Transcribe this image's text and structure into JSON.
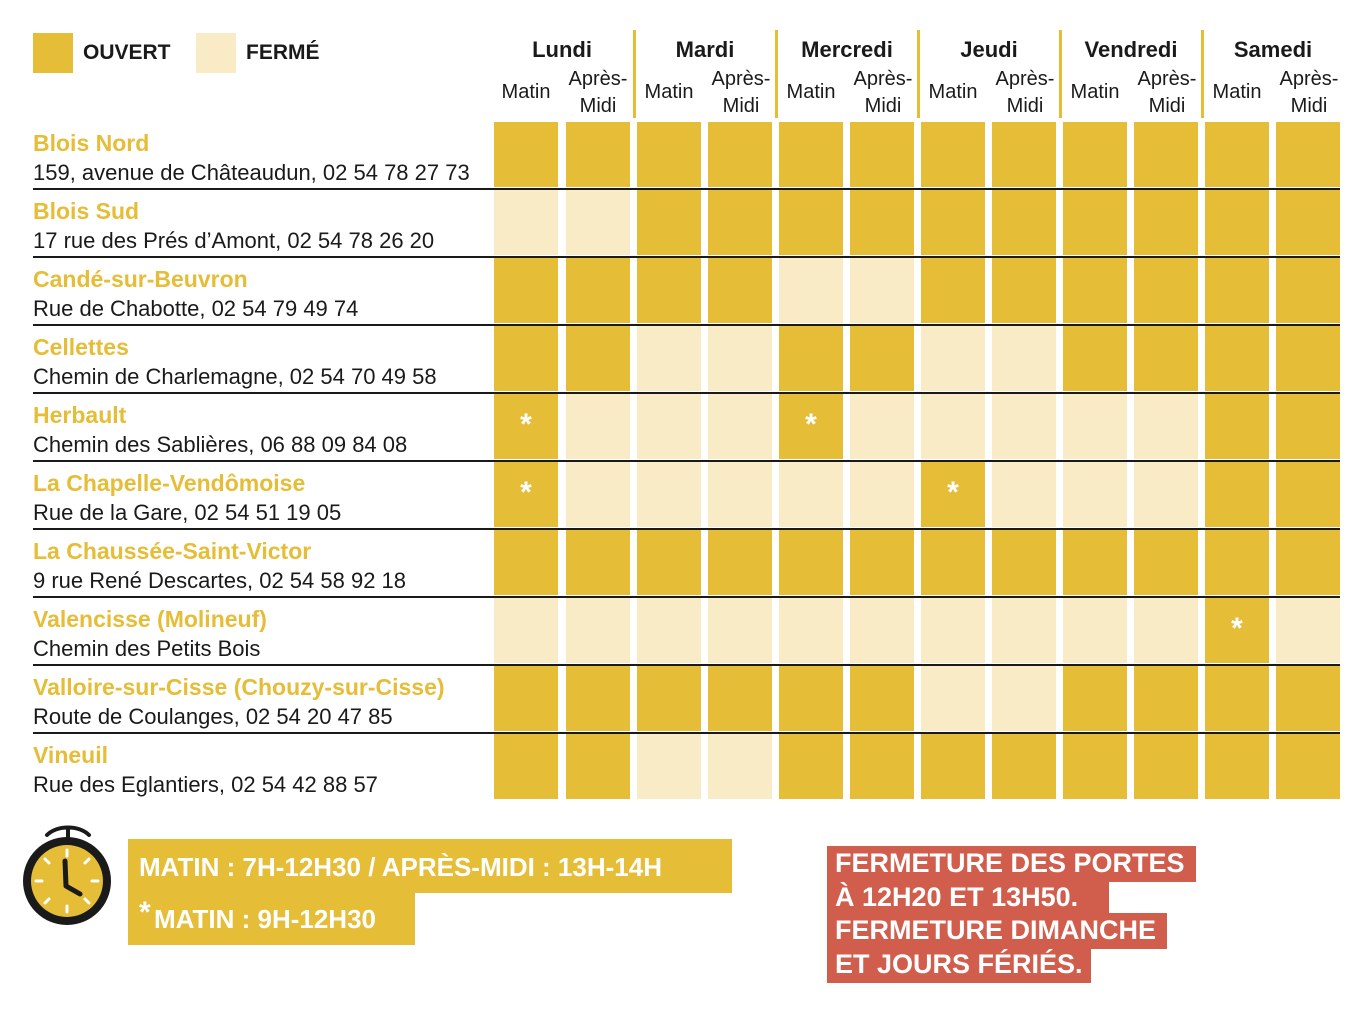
{
  "legend": {
    "open_label": "OUVERT",
    "closed_label": "FERMÉ"
  },
  "colors": {
    "open": "#e6bd37",
    "closed": "#f8ebc5",
    "title_text": "#e6bd37",
    "note_background": "#d15d4c"
  },
  "days": [
    "Lundi",
    "Mardi",
    "Mercredi",
    "Jeudi",
    "Vendredi",
    "Samedi"
  ],
  "slots": {
    "morning": "Matin",
    "afternoon_line1": "Après-",
    "afternoon_line2": "Midi"
  },
  "sites": [
    {
      "name": "Blois Nord",
      "address": "159, avenue de Châteaudun, 02 54 78 27 73",
      "schedule": [
        "open",
        "open",
        "open",
        "open",
        "open",
        "open",
        "open",
        "open",
        "open",
        "open",
        "open",
        "open"
      ]
    },
    {
      "name": "Blois Sud",
      "address": "17 rue des Prés d’Amont, 02 54 78 26 20",
      "schedule": [
        "closed",
        "closed",
        "open",
        "open",
        "open",
        "open",
        "open",
        "open",
        "open",
        "open",
        "open",
        "open"
      ]
    },
    {
      "name": "Candé-sur-Beuvron",
      "address": "Rue de Chabotte, 02 54 79 49 74",
      "schedule": [
        "open",
        "open",
        "open",
        "open",
        "closed",
        "closed",
        "open",
        "open",
        "open",
        "open",
        "open",
        "open"
      ]
    },
    {
      "name": "Cellettes",
      "address": "Chemin de Charlemagne, 02 54 70 49 58",
      "schedule": [
        "open",
        "open",
        "closed",
        "closed",
        "open",
        "open",
        "closed",
        "closed",
        "open",
        "open",
        "open",
        "open"
      ]
    },
    {
      "name": "Herbault",
      "address": "Chemin des Sablières, 06 88 09 84 08",
      "schedule": [
        "open*",
        "closed",
        "closed",
        "closed",
        "open*",
        "closed",
        "closed",
        "closed",
        "closed",
        "closed",
        "open",
        "open"
      ]
    },
    {
      "name": "La Chapelle-Vendômoise",
      "address": "Rue de la Gare, 02 54 51 19 05",
      "schedule": [
        "open*",
        "closed",
        "closed",
        "closed",
        "closed",
        "closed",
        "open*",
        "closed",
        "closed",
        "closed",
        "open",
        "open"
      ]
    },
    {
      "name": "La Chaussée-Saint-Victor",
      "address": "9 rue René Descartes, 02 54 58 92 18",
      "schedule": [
        "open",
        "open",
        "open",
        "open",
        "open",
        "open",
        "open",
        "open",
        "open",
        "open",
        "open",
        "open"
      ]
    },
    {
      "name": "Valencisse (Molineuf)",
      "address": "Chemin des Petits Bois",
      "schedule": [
        "closed",
        "closed",
        "closed",
        "closed",
        "closed",
        "closed",
        "closed",
        "closed",
        "closed",
        "closed",
        "open*",
        "closed"
      ]
    },
    {
      "name": "Valloire-sur-Cisse (Chouzy-sur-Cisse)",
      "address": "Route de Coulanges, 02 54 20 47 85",
      "schedule": [
        "open",
        "open",
        "open",
        "open",
        "open",
        "open",
        "closed",
        "closed",
        "open",
        "open",
        "open",
        "open"
      ]
    },
    {
      "name": "Vineuil",
      "address": "Rue des Eglantiers, 02 54 42 88 57",
      "schedule": [
        "open",
        "open",
        "closed",
        "closed",
        "open",
        "open",
        "open",
        "open",
        "open",
        "open",
        "open",
        "open"
      ]
    }
  ],
  "star_mark": "*",
  "hours": {
    "line1": "MATIN : 7H-12H30  / APRÈS-MIDI : 13H-14H",
    "line2_star": "*",
    "line2": "MATIN : 9H-12H30"
  },
  "notice": {
    "line1": "FERMETURE DES PORTES",
    "line2": "À 12H20 ET 13H50.",
    "line3": "FERMETURE DIMANCHE",
    "line4": "ET JOURS FÉRIÉS."
  }
}
